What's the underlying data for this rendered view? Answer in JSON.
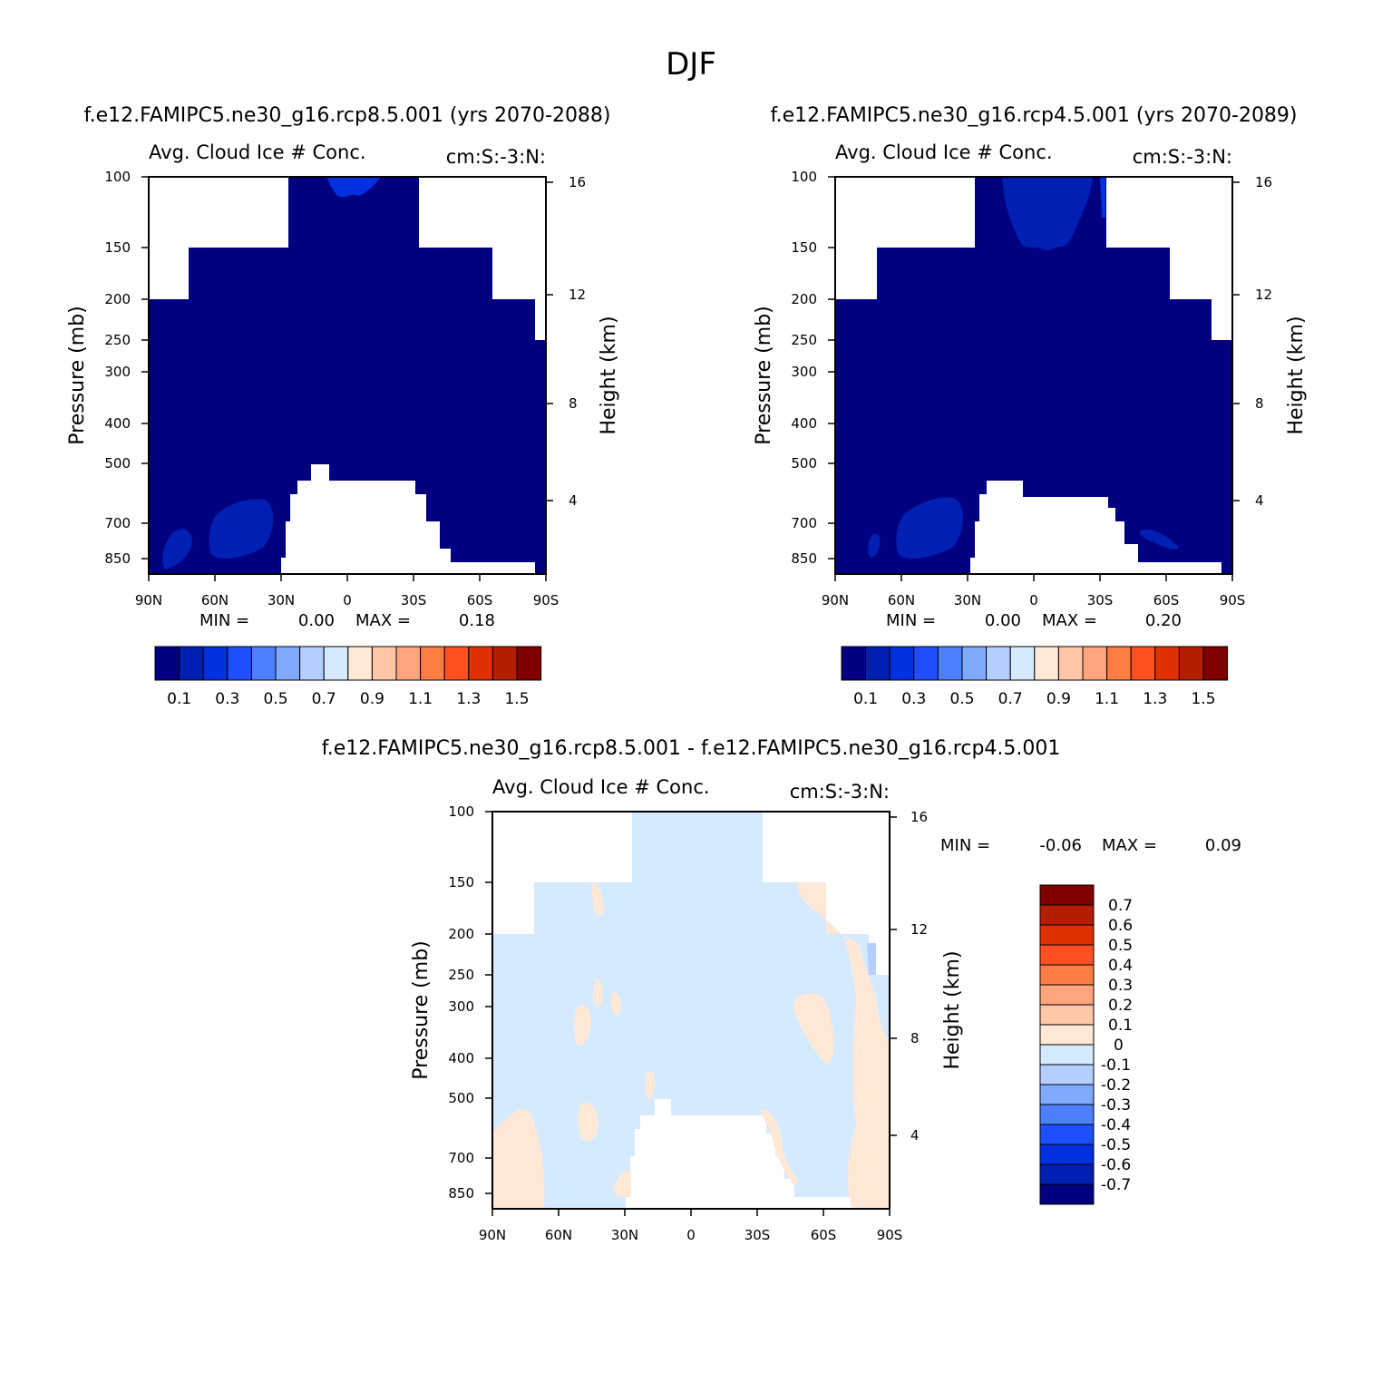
{
  "figure": {
    "title": "DJF",
    "colors": {
      "abs_scale": [
        "#000080",
        "#0020b4",
        "#0030e0",
        "#1e50ff",
        "#4c80ff",
        "#80aaff",
        "#b4cfff",
        "#d6eaff",
        "#ffe8d6",
        "#ffc6a8",
        "#ffa47c",
        "#ff7c44",
        "#ff5020",
        "#e03000",
        "#b41e00",
        "#800000"
      ],
      "diff_scale": [
        "#000080",
        "#0020b4",
        "#0030e0",
        "#1e50ff",
        "#4c80ff",
        "#80aaff",
        "#b4cfff",
        "#d6eaff",
        "#ffe8d6",
        "#ffc6a8",
        "#ffa47c",
        "#ff7c44",
        "#ff5020",
        "#e03000",
        "#b41e00",
        "#800000"
      ]
    }
  },
  "chart_data": [
    {
      "type": "heatmap",
      "panel": "rcp85",
      "title": "f.e12.FAMIPC5.ne30_g16.rcp8.5.001 (yrs 2070-2088)",
      "long_name": "Avg. Cloud Ice # Conc.",
      "units": "cm:S:-3:N:",
      "xlabel": "",
      "ylabel": "Pressure (mb)",
      "y2label": "Height (km)",
      "x_ticks": [
        "90N",
        "60N",
        "30N",
        "0",
        "30S",
        "60S",
        "90S"
      ],
      "x_range": [
        90,
        -90
      ],
      "y_ticks": [
        "100",
        "150",
        "200",
        "250",
        "300",
        "400",
        "500",
        "700",
        "850"
      ],
      "y_range": [
        100,
        850
      ],
      "y2_ticks": [
        "16",
        "12",
        "8",
        "4"
      ],
      "min_label": "MIN =",
      "min_value": "0.00",
      "max_label": "MAX =",
      "max_value": "0.18",
      "levels": [
        "0.1",
        "0.3",
        "0.5",
        "0.7",
        "0.9",
        "1.1",
        "1.3",
        "1.5"
      ],
      "field_summary": "values below 0.1 almost everywhere; patches 0.1-0.2 near 700-850 mb at 60N-80N and near 100 mb at the equator"
    },
    {
      "type": "heatmap",
      "panel": "rcp45",
      "title": "f.e12.FAMIPC5.ne30_g16.rcp4.5.001 (yrs 2070-2089)",
      "long_name": "Avg. Cloud Ice # Conc.",
      "units": "cm:S:-3:N:",
      "xlabel": "",
      "ylabel": "Pressure (mb)",
      "y2label": "Height (km)",
      "x_ticks": [
        "90N",
        "60N",
        "30N",
        "0",
        "30S",
        "60S",
        "90S"
      ],
      "x_range": [
        90,
        -90
      ],
      "y_ticks": [
        "100",
        "150",
        "200",
        "250",
        "300",
        "400",
        "500",
        "700",
        "850"
      ],
      "y_range": [
        100,
        850
      ],
      "y2_ticks": [
        "16",
        "12",
        "8",
        "4"
      ],
      "min_label": "MIN =",
      "min_value": "0.00",
      "max_label": "MAX =",
      "max_value": "0.20",
      "levels": [
        "0.1",
        "0.3",
        "0.5",
        "0.7",
        "0.9",
        "1.1",
        "1.3",
        "1.5"
      ],
      "field_summary": "values below 0.1 almost everywhere; patches 0.1-0.2 near 700-850 mb at 60N-80N, near 100-150 mb over the tropics and near 800 mb at 60S"
    },
    {
      "type": "heatmap",
      "panel": "difference",
      "title": "f.e12.FAMIPC5.ne30_g16.rcp8.5.001 - f.e12.FAMIPC5.ne30_g16.rcp4.5.001",
      "long_name": "Avg. Cloud Ice # Conc.",
      "units": "cm:S:-3:N:",
      "xlabel": "",
      "ylabel": "Pressure (mb)",
      "y2label": "Height (km)",
      "x_ticks": [
        "90N",
        "60N",
        "30N",
        "0",
        "30S",
        "60S",
        "90S"
      ],
      "x_range": [
        90,
        -90
      ],
      "y_ticks": [
        "100",
        "150",
        "200",
        "250",
        "300",
        "400",
        "500",
        "700",
        "850"
      ],
      "y_range": [
        100,
        850
      ],
      "y2_ticks": [
        "16",
        "12",
        "8",
        "4"
      ],
      "min_label": "MIN =",
      "min_value": "-0.06",
      "max_label": "MAX =",
      "max_value": "0.09",
      "levels": [
        "0.7",
        "0.6",
        "0.5",
        "0.4",
        "0.3",
        "0.2",
        "0.1",
        "0",
        "-0.1",
        "-0.2",
        "-0.3",
        "-0.4",
        "-0.5",
        "-0.6",
        "-0.7"
      ],
      "field_summary": "mostly between -0.1 and 0; positive 0 to 0.1 patches near 850-600 mb at 80N-90N, 150-900 mb at 60S-90S and small spots in the subtropics"
    }
  ]
}
